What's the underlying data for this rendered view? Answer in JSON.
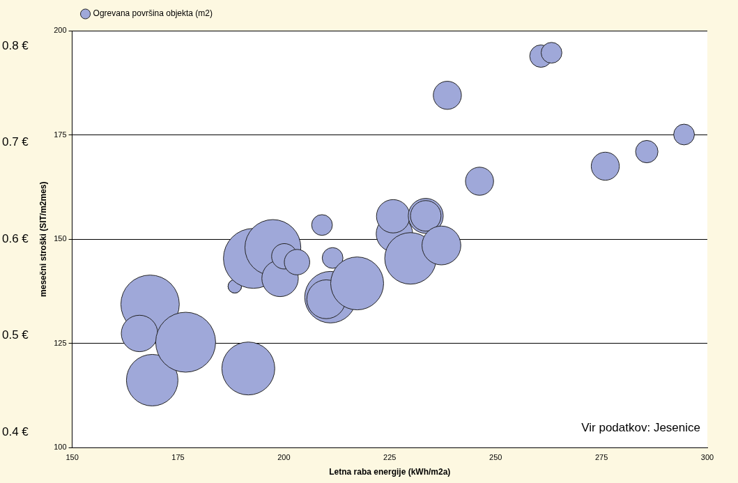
{
  "chart_data": {
    "type": "bubble",
    "xlabel": "Letna raba energije (kWh/m2a)",
    "ylabel": "mesečni stroški (SIT/m2mes)",
    "xlim": [
      150,
      300
    ],
    "xticks": [
      150,
      175,
      200,
      225,
      250,
      275,
      300
    ],
    "ylim": [
      100,
      200
    ],
    "yticks": [
      100,
      125,
      150,
      175,
      200
    ],
    "y2lim": [
      0.384,
      0.816
    ],
    "y2ticks": [
      {
        "value": 0.4,
        "label": "0.4 €"
      },
      {
        "value": 0.5,
        "label": "0.5 €"
      },
      {
        "value": 0.6,
        "label": "0.6 €"
      },
      {
        "value": 0.7,
        "label": "0.7 €"
      },
      {
        "value": 0.8,
        "label": "0.8 €"
      }
    ],
    "grid": "y",
    "legend": "top left",
    "annotations": [
      "Vir podatkov: Jesenice"
    ],
    "series": [
      {
        "name": "Ogrevana površina objekta (m2)",
        "color": "#9fa8d9",
        "x": [
          168.4,
          165.9,
          168.9,
          176.8,
          191.6,
          188.4,
          188.4,
          192.8,
          197.4,
          199.1,
          200.1,
          203.1,
          209.0,
          211.5,
          211.0,
          210.0,
          217.3,
          226.1,
          225.8,
          229.9,
          233.5,
          233.5,
          237.2,
          238.6,
          246.2,
          260.7,
          263.2,
          275.9,
          285.7,
          294.5
        ],
        "values": [
          134.4,
          127.4,
          116.2,
          125.3,
          119.0,
          138.7,
          138.7,
          145.4,
          148.0,
          140.6,
          145.9,
          144.5,
          153.4,
          145.5,
          136.1,
          135.6,
          139.4,
          151.3,
          155.5,
          145.4,
          155.6,
          155.6,
          148.5,
          184.5,
          163.9,
          193.9,
          194.7,
          167.5,
          171.0,
          175.1
        ],
        "sizes": [
          0.95,
          0.37,
          0.74,
          1,
          0.78,
          0.05,
          0.05,
          1,
          0.87,
          0.37,
          0.18,
          0.18,
          0.12,
          0.12,
          0.74,
          0.42,
          0.78,
          0.37,
          0.31,
          0.74,
          0.34,
          0.26,
          0.42,
          0.22,
          0.22,
          0.14,
          0.12,
          0.22,
          0.14,
          0.12
        ]
      }
    ]
  }
}
